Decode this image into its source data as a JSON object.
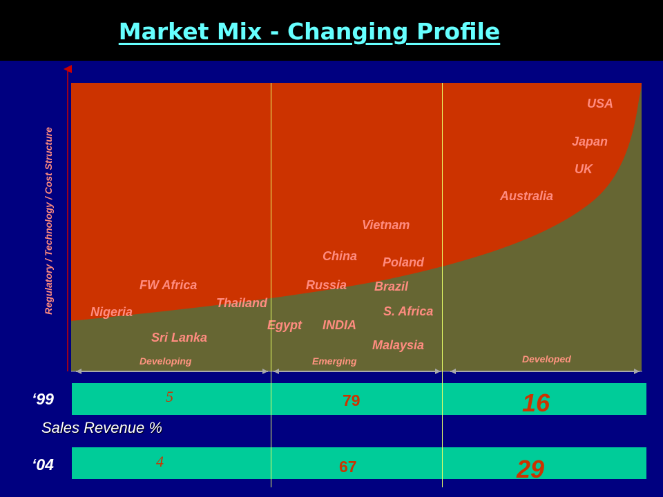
{
  "title": "Market Mix - Changing Profile",
  "y_axis_label": "Regulatory / Technology / Cost Structure",
  "zones": [
    {
      "label": "Developing"
    },
    {
      "label": "Emerging"
    },
    {
      "label": "Developed"
    }
  ],
  "countries": [
    {
      "name": "USA",
      "zone": "Developed"
    },
    {
      "name": "Japan",
      "zone": "Developed"
    },
    {
      "name": "UK",
      "zone": "Developed"
    },
    {
      "name": "Australia",
      "zone": "Developed"
    },
    {
      "name": "Vietnam",
      "zone": "Emerging"
    },
    {
      "name": "China",
      "zone": "Emerging"
    },
    {
      "name": "Poland",
      "zone": "Emerging"
    },
    {
      "name": "Russia",
      "zone": "Emerging"
    },
    {
      "name": "Brazil",
      "zone": "Emerging"
    },
    {
      "name": "FW Africa",
      "zone": "Developing"
    },
    {
      "name": "Thailand",
      "zone": "Developing"
    },
    {
      "name": "S. Africa",
      "zone": "Emerging"
    },
    {
      "name": "Nigeria",
      "zone": "Developing"
    },
    {
      "name": "Egypt",
      "zone": "Emerging"
    },
    {
      "name": "INDIA",
      "zone": "Emerging"
    },
    {
      "name": "Sri Lanka",
      "zone": "Developing"
    },
    {
      "name": "Malaysia",
      "zone": "Emerging"
    }
  ],
  "revenue_label": "Sales Revenue %",
  "revenue": [
    {
      "year": "‘99",
      "values": [
        "5",
        "79",
        "16"
      ]
    },
    {
      "year": "‘04",
      "values": [
        "4",
        "67",
        "29"
      ]
    }
  ],
  "colors": {
    "background": "#000080",
    "upper_region": "#cc3300",
    "lower_region": "#666633",
    "bar": "#00cc99",
    "title": "#66ffff",
    "country_text": "#ff8c80",
    "divider": "#e8ff66"
  }
}
